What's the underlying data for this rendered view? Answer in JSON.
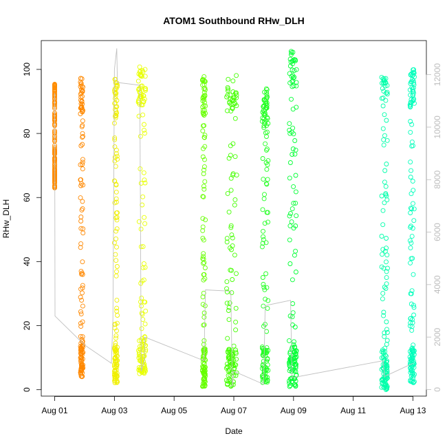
{
  "chart_data": {
    "type": "scatter",
    "title": "ATOM1 Southbound RHw_DLH",
    "xlabel": "Date",
    "ylabel": "RHw_DLH",
    "x_ticks": [
      "Aug 01",
      "Aug 03",
      "Aug 05",
      "Aug 07",
      "Aug 09",
      "Aug 11",
      "Aug 13"
    ],
    "x_tick_days": [
      1,
      3,
      5,
      7,
      9,
      11,
      13
    ],
    "xlim": [
      0.55,
      13.45
    ],
    "y_ticks": [
      0,
      20,
      40,
      60,
      80,
      100
    ],
    "ylim": [
      -2,
      109
    ],
    "y2_ticks": [
      0,
      2000,
      4000,
      6000,
      8000,
      10000,
      12000
    ],
    "y2lim": [
      -250,
      13300
    ],
    "y2_color": "#bdbdbd",
    "grid": false,
    "legend": "none",
    "marker": "open-circle",
    "series": [
      {
        "color": "#ff8c00",
        "x": [
          1.0,
          1.0
        ],
        "y_range": [
          63,
          96
        ]
      },
      {
        "color": "#ff8800",
        "x": [
          1.86,
          1.95
        ],
        "y_range": [
          4,
          98
        ]
      },
      {
        "color": "#f0f000",
        "x": [
          3.0,
          3.1
        ],
        "y_range": [
          2,
          97
        ]
      },
      {
        "color": "#e8ff00",
        "x": [
          3.8,
          4.05
        ],
        "y_range": [
          5,
          101
        ]
      },
      {
        "color": "#66ff00",
        "x": [
          5.95,
          6.05
        ],
        "y_range": [
          1,
          98
        ]
      },
      {
        "color": "#44ff00",
        "x": [
          6.75,
          7.1
        ],
        "y_range": [
          1,
          99
        ]
      },
      {
        "color": "#22ff22",
        "x": [
          7.95,
          8.15
        ],
        "y_range": [
          2,
          94
        ]
      },
      {
        "color": "#00ff33",
        "x": [
          8.85,
          9.1
        ],
        "y_range": [
          1,
          106
        ]
      },
      {
        "color": "#00ffaa",
        "x": [
          11.95,
          12.15
        ],
        "y_range": [
          0,
          100
        ]
      },
      {
        "color": "#00ffbb",
        "x": [
          12.9,
          13.05
        ],
        "y_range": [
          2,
          100
        ]
      }
    ],
    "secondary_line": {
      "color": "#c0c0c0",
      "points": [
        [
          1.0,
          11300
        ],
        [
          1.01,
          2800
        ],
        [
          2.0,
          1700
        ],
        [
          2.9,
          1000
        ],
        [
          2.95,
          2700
        ],
        [
          3.0,
          12200
        ],
        [
          3.08,
          13000
        ],
        [
          3.1,
          11700
        ],
        [
          3.85,
          11600
        ],
        [
          3.9,
          700
        ],
        [
          4.0,
          1100
        ],
        [
          4.02,
          2000
        ],
        [
          6.0,
          1100
        ],
        [
          6.05,
          3800
        ],
        [
          6.9,
          3750
        ],
        [
          6.95,
          100
        ],
        [
          7.0,
          700
        ],
        [
          8.0,
          200
        ],
        [
          8.05,
          3200
        ],
        [
          8.9,
          3400
        ],
        [
          8.95,
          450
        ],
        [
          12.0,
          1100
        ],
        [
          12.05,
          500
        ],
        [
          13.0,
          1000
        ]
      ]
    }
  }
}
